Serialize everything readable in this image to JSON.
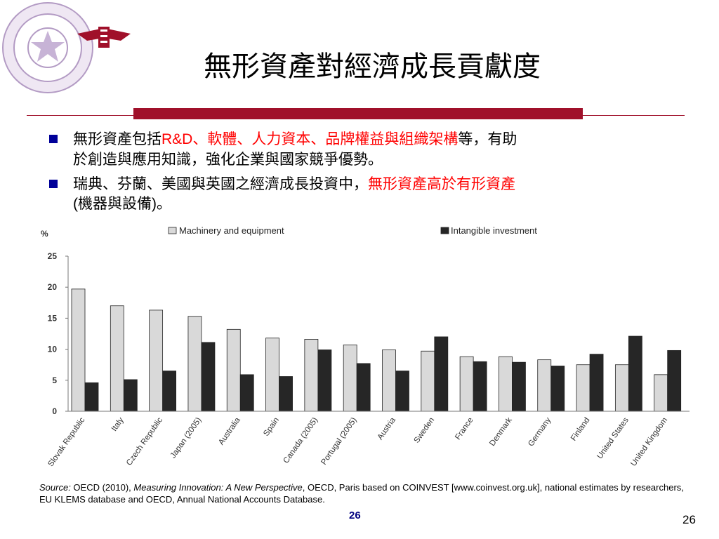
{
  "slide": {
    "title": "無形資產對經濟成長貢獻度",
    "bullets": [
      {
        "pre": "無形資產包括",
        "red_latin": "R&D",
        "red_rest": "、軟體、人力資本、品牌權益與組織架構",
        "post": "等，有助",
        "line2": "於創造與應用知識，強化企業與國家競爭優勢。"
      },
      {
        "pre": "瑞典、芬蘭、美國與英國之經濟成長投資中，",
        "red": "無形資產高於有形資產",
        "line2_latin": "(機器與設備)",
        "line2_end": "。"
      }
    ],
    "source_label": "Source:",
    "source_mid1": " OECD (2010), ",
    "source_title": "Measuring Innovation: A New Perspective",
    "source_rest": ", OECD, Paris based on COINVEST [www.coinvest.org.uk], national estimates by researchers, EU KLEMS database and OECD, Annual National Accounts Database.",
    "page_number_center": "26",
    "page_number_right": "26",
    "colors": {
      "accent": "#a0102a",
      "bullet": "#000099",
      "highlight": "#ff0000"
    }
  },
  "chart_data": {
    "type": "bar",
    "ylabel": "%",
    "ylim": [
      0,
      25
    ],
    "yticks": [
      0,
      5,
      10,
      15,
      20,
      25
    ],
    "legend_position": "top",
    "categories": [
      "Slovak Republic",
      "Italy",
      "Czech Republic",
      "Japan (2005)",
      "Australia",
      "Spain",
      "Canada (2005)",
      "Portugal (2005)",
      "Austria",
      "Sweden",
      "France",
      "Denmark",
      "Germany",
      "Finland",
      "United States",
      "United Kingdom"
    ],
    "series": [
      {
        "name": "Machinery and equipment",
        "color": "#d9d9d9",
        "values": [
          19.7,
          17.0,
          16.3,
          15.3,
          13.2,
          11.8,
          11.6,
          10.7,
          9.9,
          9.7,
          8.8,
          8.8,
          8.3,
          7.5,
          7.5,
          5.9
        ]
      },
      {
        "name": "Intangible investment",
        "color": "#262626",
        "values": [
          4.6,
          5.1,
          6.5,
          11.1,
          5.9,
          5.6,
          9.9,
          7.7,
          6.5,
          12.0,
          8.0,
          7.9,
          7.3,
          9.2,
          12.1,
          9.8
        ]
      }
    ]
  }
}
